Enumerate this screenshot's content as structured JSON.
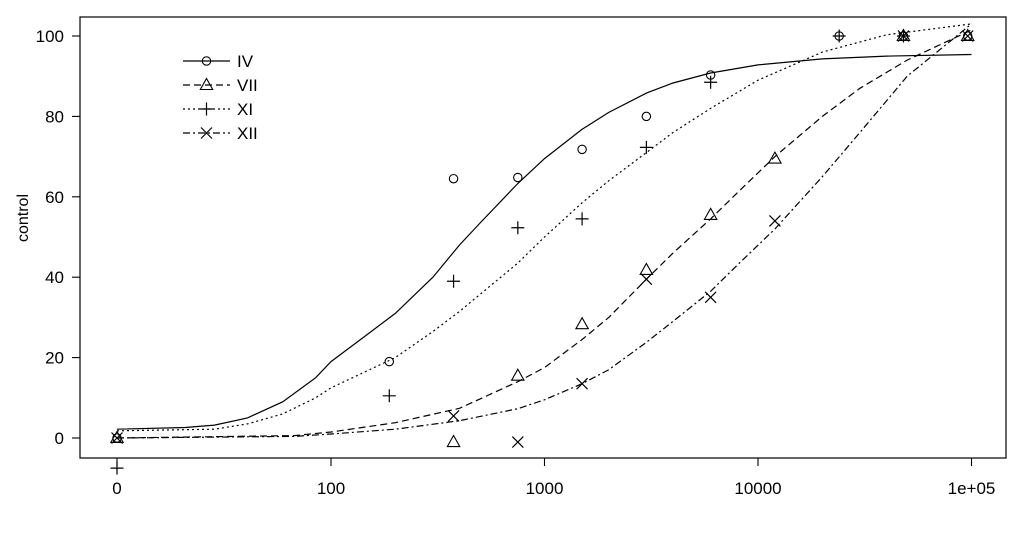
{
  "chart_data": {
    "type": "scatter",
    "title": "",
    "xlabel": "",
    "ylabel": "control",
    "x_scale": "log",
    "x_ticks": [
      {
        "value": 0,
        "label": "0"
      },
      {
        "value": 100,
        "label": "100"
      },
      {
        "value": 1000,
        "label": "1000"
      },
      {
        "value": 10000,
        "label": "10000"
      },
      {
        "value": 100000,
        "label": "1e+05"
      }
    ],
    "y_ticks": [
      0,
      20,
      40,
      60,
      80,
      100
    ],
    "ylim": [
      -8,
      104
    ],
    "grid": false,
    "legend_position": "top-left",
    "series": [
      {
        "name": "IV",
        "marker": "circle",
        "line": "solid",
        "points": [
          [
            0,
            0
          ],
          [
            187.5,
            19
          ],
          [
            375,
            64.5
          ],
          [
            750,
            64.8
          ],
          [
            1500,
            71.8
          ],
          [
            3000,
            80
          ],
          [
            6000,
            90.3
          ],
          [
            24000,
            100
          ],
          [
            48000,
            100
          ],
          [
            96000,
            100
          ]
        ],
        "curve": [
          [
            0,
            2.2
          ],
          [
            5,
            2.6
          ],
          [
            10,
            3.2
          ],
          [
            20,
            5.0
          ],
          [
            40,
            9.0
          ],
          [
            75,
            15
          ],
          [
            100,
            19
          ],
          [
            150,
            26
          ],
          [
            200,
            31
          ],
          [
            300,
            40
          ],
          [
            400,
            48
          ],
          [
            500,
            53.5
          ],
          [
            750,
            63.3
          ],
          [
            1000,
            69.5
          ],
          [
            1500,
            76.8
          ],
          [
            2000,
            81
          ],
          [
            3000,
            85.8
          ],
          [
            4000,
            88.3
          ],
          [
            6000,
            90.8
          ],
          [
            10000,
            92.8
          ],
          [
            20000,
            94.3
          ],
          [
            40000,
            95
          ],
          [
            100000,
            95.4
          ]
        ]
      },
      {
        "name": "VII",
        "marker": "triangle",
        "line": "dashed",
        "points": [
          [
            0,
            0
          ],
          [
            375,
            -1
          ],
          [
            750,
            15.5
          ],
          [
            1500,
            28.3
          ],
          [
            3000,
            41.8
          ],
          [
            6000,
            55.5
          ],
          [
            12000,
            69.5
          ],
          [
            48000,
            100
          ],
          [
            96000,
            100
          ]
        ],
        "curve": [
          [
            0,
            0
          ],
          [
            50,
            0.6
          ],
          [
            100,
            1.5
          ],
          [
            200,
            3.8
          ],
          [
            400,
            7.4
          ],
          [
            750,
            14
          ],
          [
            1000,
            17.5
          ],
          [
            1500,
            24.5
          ],
          [
            2000,
            30
          ],
          [
            3000,
            39.5
          ],
          [
            4000,
            46
          ],
          [
            6000,
            54.5
          ],
          [
            8000,
            61
          ],
          [
            12000,
            70
          ],
          [
            20000,
            80
          ],
          [
            30000,
            87
          ],
          [
            50000,
            94
          ],
          [
            100000,
            101.5
          ]
        ]
      },
      {
        "name": "XI",
        "marker": "plus",
        "line": "dotted",
        "points": [
          [
            0,
            -7.5
          ],
          [
            187.5,
            10.5
          ],
          [
            375,
            39
          ],
          [
            750,
            52.3
          ],
          [
            1500,
            54.5
          ],
          [
            3000,
            72.3
          ],
          [
            6000,
            88.5
          ],
          [
            24000,
            100
          ],
          [
            48000,
            100
          ]
        ],
        "curve": [
          [
            0,
            1.8
          ],
          [
            10,
            2.2
          ],
          [
            20,
            3.5
          ],
          [
            40,
            6
          ],
          [
            75,
            10
          ],
          [
            100,
            12.5
          ],
          [
            200,
            20
          ],
          [
            300,
            26.5
          ],
          [
            400,
            31.5
          ],
          [
            750,
            43.5
          ],
          [
            1000,
            50
          ],
          [
            1500,
            58.5
          ],
          [
            2000,
            64
          ],
          [
            3000,
            71
          ],
          [
            4000,
            76
          ],
          [
            6000,
            82
          ],
          [
            10000,
            89
          ],
          [
            20000,
            96
          ],
          [
            40000,
            100.3
          ],
          [
            100000,
            103
          ]
        ]
      },
      {
        "name": "XII",
        "marker": "cross",
        "line": "dotdash",
        "points": [
          [
            0,
            0
          ],
          [
            375,
            5.5
          ],
          [
            750,
            -1
          ],
          [
            1500,
            13.5
          ],
          [
            3000,
            39.5
          ],
          [
            6000,
            35
          ],
          [
            12000,
            54
          ],
          [
            48000,
            100
          ],
          [
            96000,
            100
          ]
        ],
        "curve": [
          [
            0,
            0
          ],
          [
            50,
            0.4
          ],
          [
            100,
            1
          ],
          [
            200,
            2.2
          ],
          [
            400,
            4.3
          ],
          [
            750,
            7.3
          ],
          [
            1000,
            9.5
          ],
          [
            1500,
            13.5
          ],
          [
            2000,
            17
          ],
          [
            3000,
            23.8
          ],
          [
            4000,
            29
          ],
          [
            6000,
            36.5
          ],
          [
            8000,
            43
          ],
          [
            12000,
            52
          ],
          [
            20000,
            65
          ],
          [
            30000,
            76
          ],
          [
            50000,
            90
          ],
          [
            100000,
            103
          ]
        ]
      }
    ]
  }
}
